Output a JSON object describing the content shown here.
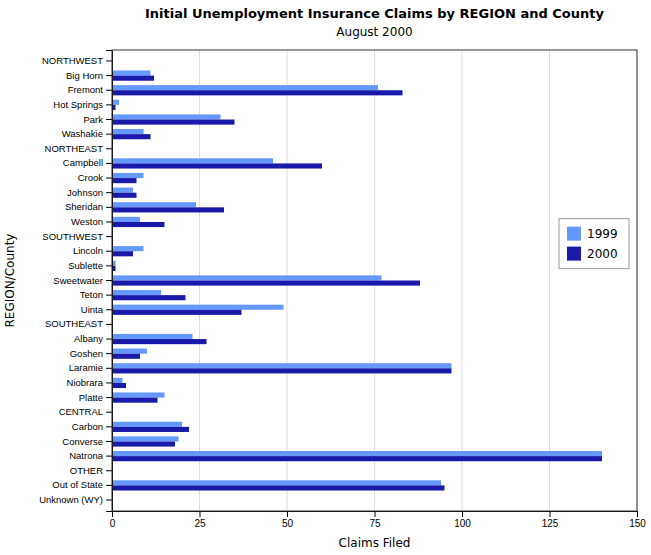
{
  "chart_data": {
    "type": "bar",
    "orientation": "horizontal",
    "title": "Initial Unemployment Insurance Claims by REGION and County",
    "subtitle": "August 2000",
    "xlabel": "Claims Filed",
    "ylabel": "REGION/County",
    "xlim": [
      0,
      150
    ],
    "xticks": [
      0,
      25,
      50,
      75,
      100,
      125,
      150
    ],
    "grid": true,
    "legend": "right",
    "categories": [
      "NORTHWEST",
      "Big Horn",
      "Fremont",
      "Hot Springs",
      "Park",
      "Washakie",
      "NORTHEAST",
      "Campbell",
      "Crook",
      "Johnson",
      "Sheridan",
      "Weston",
      "SOUTHWEST",
      "Lincoln",
      "Sublette",
      "Sweetwater",
      "Teton",
      "Uinta",
      "SOUTHEAST",
      "Albany",
      "Goshen",
      "Laramie",
      "Niobrara",
      "Platte",
      "CENTRAL",
      "Carbon",
      "Converse",
      "Natrona",
      "OTHER",
      "Out of State",
      "Unknown (WY)"
    ],
    "series": [
      {
        "name": "1999",
        "color": "#6699FF",
        "values": [
          0,
          11,
          76,
          2,
          31,
          9,
          0,
          46,
          9,
          6,
          24,
          8,
          0,
          9,
          1,
          77,
          14,
          49,
          0,
          23,
          10,
          97,
          3,
          15,
          0,
          20,
          19,
          140,
          0,
          94,
          0
        ]
      },
      {
        "name": "2000",
        "color": "#1a1aaa",
        "values": [
          0,
          12,
          83,
          1,
          35,
          11,
          0,
          60,
          7,
          7,
          32,
          15,
          0,
          6,
          1,
          88,
          21,
          37,
          0,
          27,
          8,
          97,
          4,
          13,
          0,
          22,
          18,
          140,
          0,
          95,
          0
        ]
      }
    ]
  }
}
